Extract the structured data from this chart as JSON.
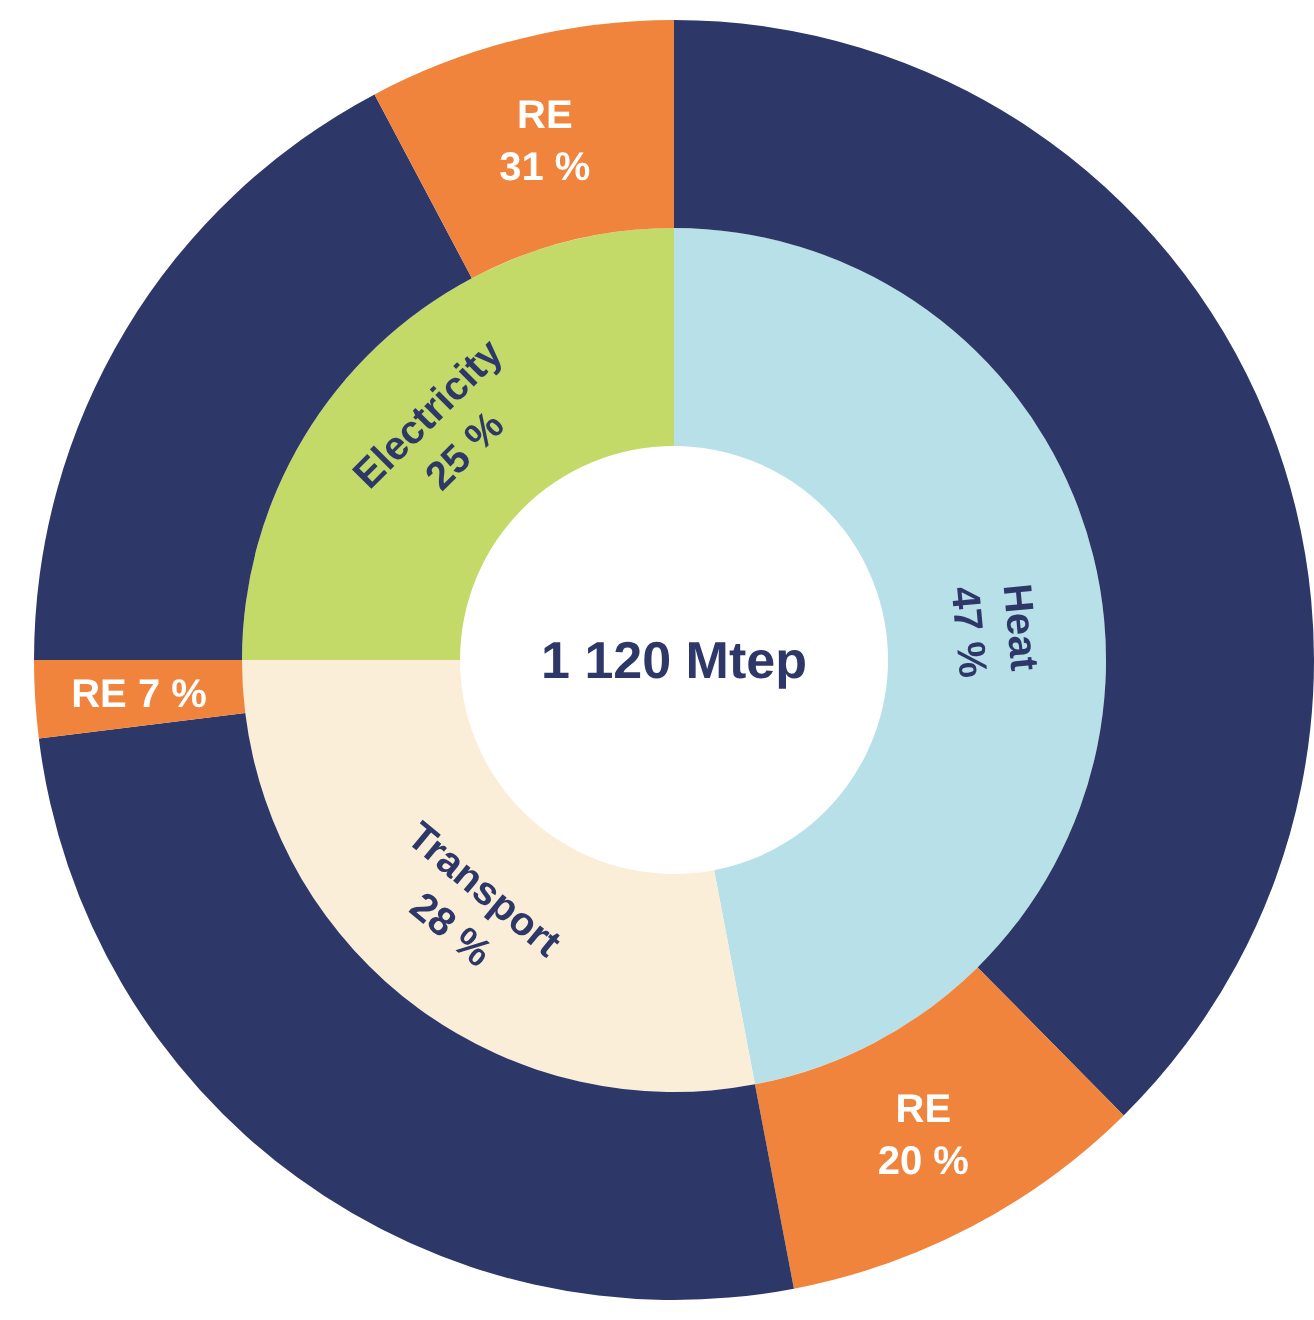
{
  "chart_data": [
    {
      "type": "donut",
      "annotations": [
        "1 120 Mtep"
      ],
      "categories": [
        "Heat",
        "Transport",
        "Electricity"
      ],
      "values": [
        47,
        28,
        25
      ],
      "colors": [
        "#b8e0e8",
        "#fbeed8",
        "#c3d968"
      ],
      "value_labels": [
        "47 %",
        "28 %",
        "25 %"
      ]
    },
    {
      "type": "donut",
      "categories": [
        null,
        null,
        null,
        null,
        null,
        null
      ],
      "values": [
        37.6,
        9.4,
        26.04,
        1.96,
        17.25,
        7.75
      ],
      "colors": [
        "#2e3868",
        "#f0843c",
        "#2e3868",
        "#f0843c",
        "#2e3868",
        "#f0843c"
      ],
      "value_labels": [
        null,
        "RE 20 %",
        null,
        "RE 7 %",
        null,
        "RE 31 %"
      ]
    }
  ]
}
